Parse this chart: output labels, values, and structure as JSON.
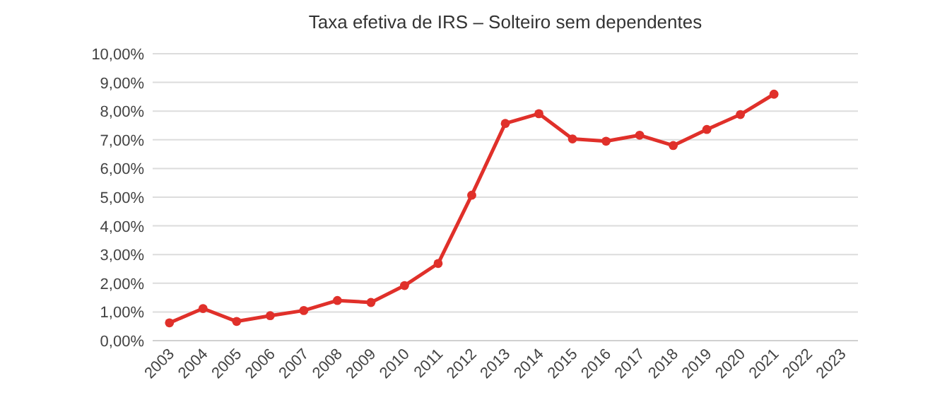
{
  "chart_data": {
    "type": "line",
    "title": "Taxa efetiva de IRS – Solteiro sem dependentes",
    "categories": [
      "2003",
      "2004",
      "2005",
      "2006",
      "2007",
      "2008",
      "2009",
      "2010",
      "2011",
      "2012",
      "2013",
      "2014",
      "2015",
      "2016",
      "2017",
      "2018",
      "2019",
      "2020",
      "2021",
      "2022",
      "2023"
    ],
    "series": [
      {
        "color": "#e0302a",
        "values": [
          0.62,
          1.12,
          0.67,
          0.87,
          1.05,
          1.4,
          1.33,
          1.92,
          2.69,
          5.07,
          7.57,
          7.91,
          7.03,
          6.95,
          7.16,
          6.8,
          7.36,
          7.88,
          8.59,
          null,
          null
        ]
      }
    ],
    "ylim": [
      0,
      10
    ],
    "yticks": [
      {
        "value": 0,
        "label": "0,00%"
      },
      {
        "value": 1,
        "label": "1,00%"
      },
      {
        "value": 2,
        "label": "2,00%"
      },
      {
        "value": 3,
        "label": "3,00%"
      },
      {
        "value": 4,
        "label": "4,00%"
      },
      {
        "value": 5,
        "label": "5,00%"
      },
      {
        "value": 6,
        "label": "6,00%"
      },
      {
        "value": 7,
        "label": "7,00%"
      },
      {
        "value": 8,
        "label": "8,00%"
      },
      {
        "value": 9,
        "label": "9,00%"
      },
      {
        "value": 10,
        "label": "10,00%"
      }
    ],
    "grid": "y",
    "marker": "circle",
    "line_style": "solid"
  }
}
